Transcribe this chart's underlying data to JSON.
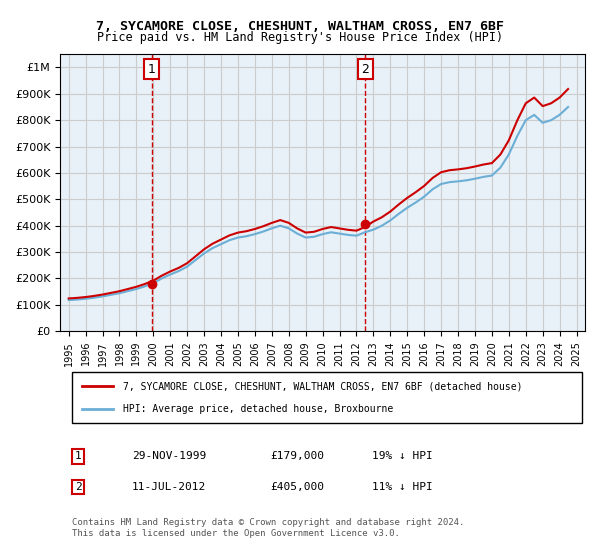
{
  "title": "7, SYCAMORE CLOSE, CHESHUNT, WALTHAM CROSS, EN7 6BF",
  "subtitle": "Price paid vs. HM Land Registry's House Price Index (HPI)",
  "legend_line1": "7, SYCAMORE CLOSE, CHESHUNT, WALTHAM CROSS, EN7 6BF (detached house)",
  "legend_line2": "HPI: Average price, detached house, Broxbourne",
  "annotation1_label": "1",
  "annotation1_date": "29-NOV-1999",
  "annotation1_price": "£179,000",
  "annotation1_hpi": "19% ↓ HPI",
  "annotation2_label": "2",
  "annotation2_date": "11-JUL-2012",
  "annotation2_price": "£405,000",
  "annotation2_hpi": "11% ↓ HPI",
  "footer": "Contains HM Land Registry data © Crown copyright and database right 2024.\nThis data is licensed under the Open Government Licence v3.0.",
  "sale1_x": 1999.91,
  "sale1_y": 179000,
  "sale2_x": 2012.53,
  "sale2_y": 405000,
  "hpi_color": "#6baed6",
  "price_color": "#cc0000",
  "bg_color": "#e8f0f8",
  "grid_color": "#cccccc",
  "marker_box_color": "#cc0000",
  "ylim": [
    0,
    1050000
  ],
  "xlim": [
    1994.5,
    2025.5
  ]
}
